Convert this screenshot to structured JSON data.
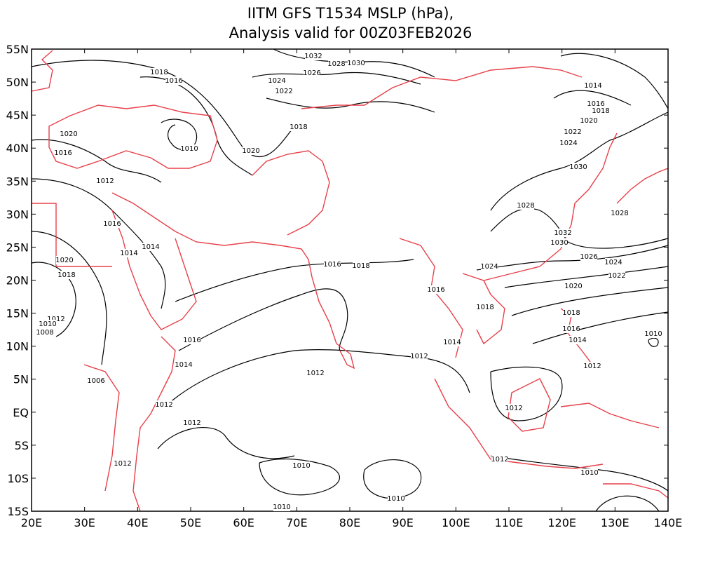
{
  "title": [
    "IITM GFS T1534 MSLP (hPa),",
    "Analysis valid for 00Z03FEB2026"
  ],
  "lat_labels": [
    "55N",
    "50N",
    "45N",
    "40N",
    "35N",
    "30N",
    "25N",
    "20N",
    "15N",
    "10N",
    "5N",
    "EQ",
    "5S",
    "10S",
    "15S"
  ],
  "lon_labels": [
    "20E",
    "30E",
    "40E",
    "50E",
    "60E",
    "70E",
    "80E",
    "90E",
    "100E",
    "110E",
    "120E",
    "130E",
    "140E"
  ],
  "contour_labels": [
    1032,
    1028,
    1030,
    1018,
    1016,
    1026,
    1024,
    1022,
    1014,
    1016,
    1018,
    1020,
    1022,
    1024,
    1020,
    1018,
    1010,
    1020,
    1016,
    1030,
    1012,
    1028,
    1028,
    1016,
    1032,
    1030,
    1014,
    1014,
    1026,
    1020,
    1016,
    1018,
    1024,
    1024,
    1018,
    1022,
    1020,
    1016,
    1018,
    1018,
    1012,
    1010,
    1008,
    1016,
    1010,
    1016,
    1014,
    1014,
    1014,
    1012,
    1012,
    1012,
    1006,
    1012,
    1012,
    1012,
    1012,
    1012,
    1010,
    1010,
    1010,
    1010
  ]
}
